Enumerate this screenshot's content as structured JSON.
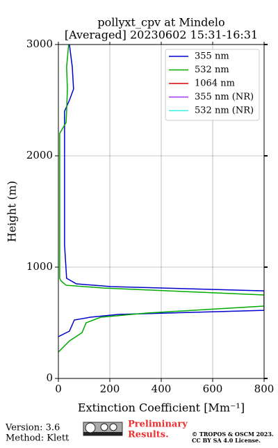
{
  "chart_data": {
    "type": "line",
    "title": "pollyxt_cpv at Mindelo",
    "subtitle": "[Averaged] 20230602 15:31-16:31",
    "x_label": "Extinction Coefficient [Mm⁻¹]",
    "y_label": "Height (m)",
    "xlim": [
      0,
      800
    ],
    "xticks": [
      0,
      200,
      400,
      600,
      800
    ],
    "ylim": [
      0,
      3000
    ],
    "yticks": [
      0,
      1000,
      2000,
      3000
    ],
    "grid": true,
    "legend": "upper right",
    "series": [
      {
        "name": "355 nm",
        "color": "#0000cc",
        "heights": [
          375,
          425,
          525,
          550,
          575,
          612,
          787,
          825,
          850,
          900,
          1200,
          1600,
          2000,
          2400,
          2500,
          2600,
          2800,
          3000
        ],
        "values": [
          0,
          43,
          62,
          124,
          232,
          800,
          800,
          205,
          70,
          32,
          24,
          24,
          24,
          24,
          43,
          59,
          54,
          43
        ]
      },
      {
        "name": "532 nm",
        "color": "#00aa00",
        "heights": [
          237,
          337,
          412,
          500,
          550,
          587,
          650,
          750,
          812,
          837,
          875,
          900,
          1500,
          2200,
          2300,
          2400,
          2600,
          2800,
          3000
        ],
        "values": [
          0,
          43,
          92,
          108,
          165,
          340,
          800,
          800,
          178,
          30,
          11,
          5,
          5,
          5,
          30,
          32,
          35,
          32,
          40
        ]
      },
      {
        "name": "1064 nm",
        "color": "#dd0000",
        "heights": [],
        "values": []
      },
      {
        "name": "355 nm (NR)",
        "color": "#9933ee",
        "heights": [],
        "values": []
      },
      {
        "name": "532 nm (NR)",
        "color": "#33eedd",
        "heights": [],
        "values": []
      }
    ]
  },
  "footer": {
    "version": "Version: 3.6",
    "method": "Method: Klett",
    "notice": [
      "Preliminary",
      "Results."
    ],
    "copyright": [
      "© TROPOS & OSCM 2023.",
      "CC BY SA 4.0 License."
    ]
  }
}
